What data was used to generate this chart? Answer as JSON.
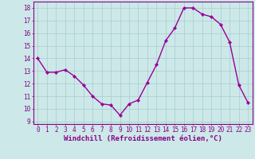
{
  "x": [
    0,
    1,
    2,
    3,
    4,
    5,
    6,
    7,
    8,
    9,
    10,
    11,
    12,
    13,
    14,
    15,
    16,
    17,
    18,
    19,
    20,
    21,
    22,
    23
  ],
  "y": [
    14.0,
    12.9,
    12.9,
    13.1,
    12.6,
    11.9,
    11.0,
    10.4,
    10.3,
    9.5,
    10.4,
    10.7,
    12.1,
    13.5,
    15.4,
    16.4,
    18.0,
    18.0,
    17.5,
    17.3,
    16.7,
    15.3,
    11.9,
    10.5
  ],
  "line_color": "#990099",
  "marker": "D",
  "marker_size": 2.2,
  "bg_color": "#cce8e8",
  "grid_color": "#aacccc",
  "ylim": [
    8.8,
    18.5
  ],
  "xlim": [
    -0.5,
    23.5
  ],
  "yticks": [
    9,
    10,
    11,
    12,
    13,
    14,
    15,
    16,
    17,
    18
  ],
  "xticks": [
    0,
    1,
    2,
    3,
    4,
    5,
    6,
    7,
    8,
    9,
    10,
    11,
    12,
    13,
    14,
    15,
    16,
    17,
    18,
    19,
    20,
    21,
    22,
    23
  ],
  "tick_label_color": "#880088",
  "tick_label_size": 5.5,
  "xlabel": "Windchill (Refroidissement éolien,°C)",
  "xlabel_size": 6.5,
  "spine_color": "#880088",
  "linewidth": 1.0
}
